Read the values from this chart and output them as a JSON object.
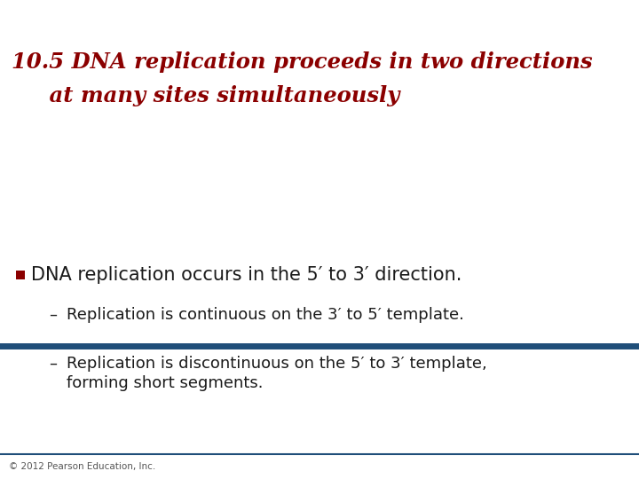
{
  "title_line1": "10.5 DNA replication proceeds in two directions",
  "title_line2": "     at many sites simultaneously",
  "title_color": "#8B0000",
  "title_fontsize": 17.5,
  "separator_color": "#1F4E79",
  "bullet_color": "#8B0000",
  "bullet_text": "DNA replication occurs in the 5′ to 3′ direction.",
  "bullet_fontsize": 15,
  "sub1": "Replication is continuous on the 3′ to 5′ template.",
  "sub2_line1": "Replication is discontinuous on the 5′ to 3′ template,",
  "sub2_line2": "forming short segments.",
  "sub_fontsize": 13,
  "footer": "© 2012 Pearson Education, Inc.",
  "footer_fontsize": 7.5,
  "background_color": "#FFFFFF",
  "text_color": "#1a1a1a"
}
